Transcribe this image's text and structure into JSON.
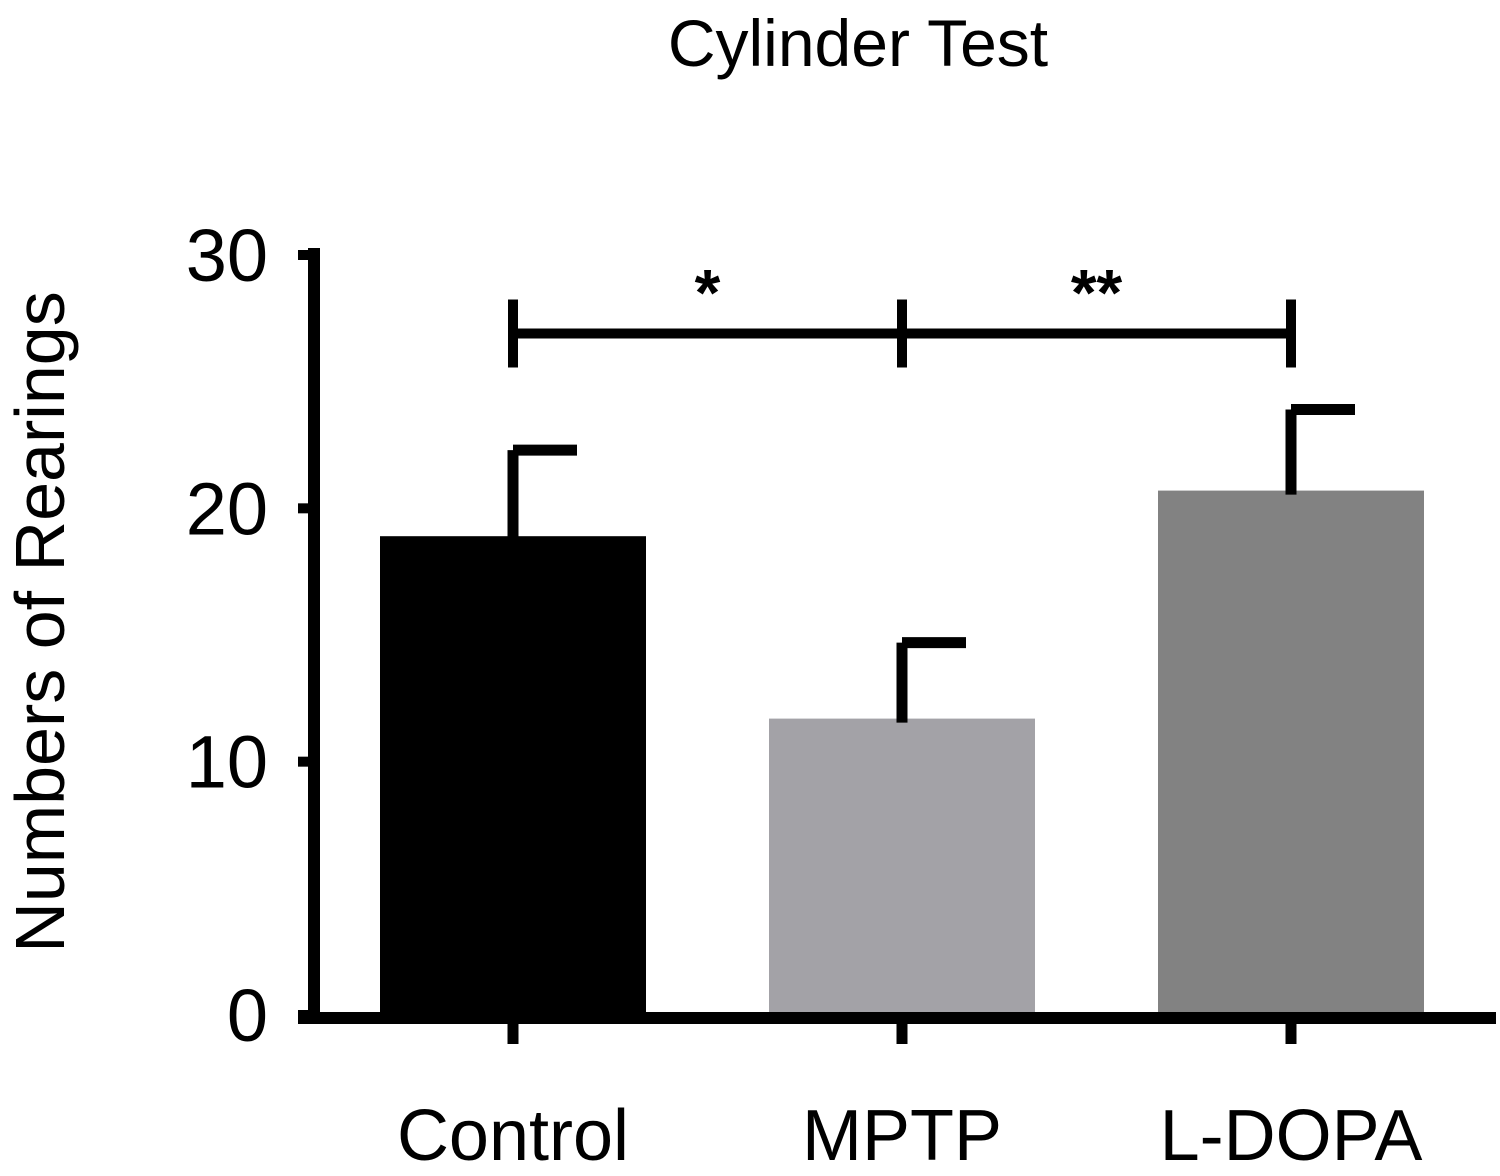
{
  "chart_data": {
    "type": "bar",
    "title": "Cylinder Test",
    "xlabel": "",
    "ylabel": "Numbers of Rearings",
    "ylim": [
      0,
      30
    ],
    "yticks": [
      0,
      10,
      20,
      30
    ],
    "grid": false,
    "categories": [
      "Control",
      "MPTP",
      "L-DOPA"
    ],
    "values": [
      18.9,
      11.7,
      20.7
    ],
    "errors": [
      3.4,
      3.0,
      3.2
    ],
    "colors": [
      "#000000",
      "#a3a2a7",
      "#828282"
    ],
    "significance": [
      {
        "from": 0,
        "to": 1,
        "label": "*"
      },
      {
        "from": 1,
        "to": 2,
        "label": "**"
      }
    ],
    "significance_level": 26.9
  }
}
